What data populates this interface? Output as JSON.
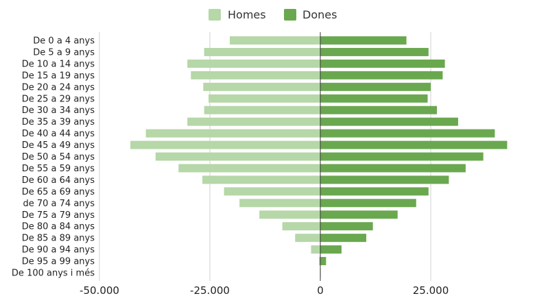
{
  "chart_data": {
    "type": "bar",
    "orientation": "horizontal",
    "layout": "population-pyramid",
    "categories": [
      "De 0 a 4 anys",
      "De 5 a 9 anys",
      "De 10 a 14 anys",
      "De 15 a 19 anys",
      "De 20 a 24 anys",
      "De 25 a 29 anys",
      "De 30 a 34 anys",
      "De 35 a 39 anys",
      "De 40 a 44 anys",
      "De 45 a 49 anys",
      "De 50 a 54 anys",
      "De 55 a 59 anys",
      "De 60 a 64 anys",
      "De 65 a 69 anys",
      "de 70 a 74 anys",
      "De 75 a 79 anys",
      "De 80 a 84 anys",
      "De 85 a 89 anys",
      "De 90 a 94 anys",
      "De 95 a 99 anys",
      "De 100 anys i més"
    ],
    "series": [
      {
        "name": "Homes",
        "color": "#b6d7a8",
        "values": [
          -20500,
          -26300,
          -30100,
          -29300,
          -26500,
          -25300,
          -26300,
          -30100,
          -39500,
          -43000,
          -37300,
          -32100,
          -26700,
          -21800,
          -18300,
          -13800,
          -8600,
          -5700,
          -2100,
          -300,
          0
        ]
      },
      {
        "name": "Dones",
        "color": "#6aa84f",
        "values": [
          19500,
          24500,
          28200,
          27700,
          25000,
          24300,
          26400,
          31200,
          39500,
          42300,
          36900,
          32900,
          29100,
          24500,
          21700,
          17500,
          11900,
          10400,
          4800,
          1300,
          100
        ]
      }
    ],
    "x_ticks": [
      {
        "value": -50000,
        "label": "-50.000"
      },
      {
        "value": -25000,
        "label": "-25.000"
      },
      {
        "value": 0,
        "label": "0"
      },
      {
        "value": 25000,
        "label": "25.000"
      }
    ],
    "xlim": [
      -50000,
      45000
    ],
    "grid": true,
    "legend": "top-center",
    "title": "",
    "xlabel": "",
    "ylabel": ""
  }
}
